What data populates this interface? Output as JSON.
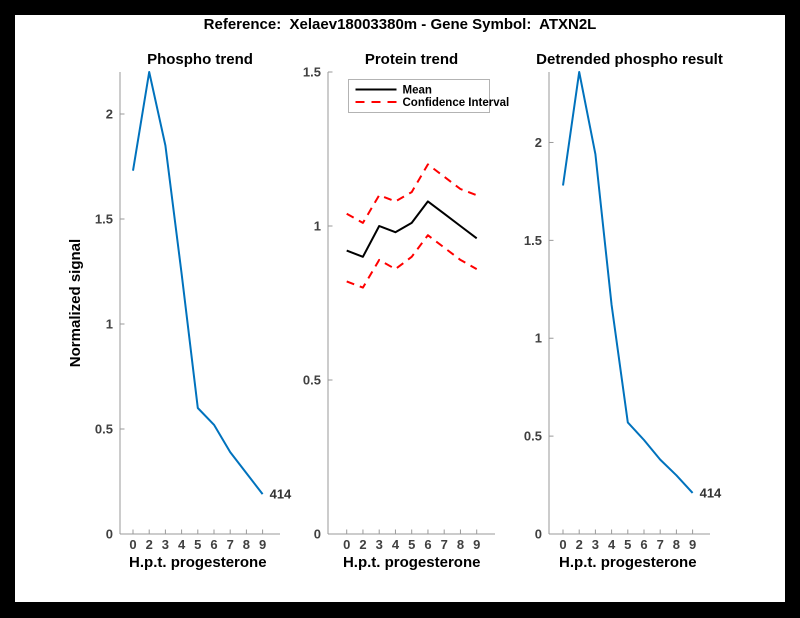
{
  "figure": {
    "title": "Reference:  Xelaev18003380m - Gene Symbol:  ATXN2L"
  },
  "colors": {
    "blue": "#0072BD",
    "red": "#FF0000",
    "black": "#000000",
    "axis_line": "#999999",
    "tick_text": "#404040",
    "label_text": "#000000",
    "legend_border": "#b3b3b3",
    "end_label_text": "#333333"
  },
  "chart_data": [
    {
      "type": "line",
      "title": "Phospho trend",
      "xlabel": "H.p.t. progesterone",
      "ylabel": "Normalized signal",
      "x_tick_labels": [
        "0",
        "2",
        "3",
        "4",
        "5",
        "6",
        "7",
        "8",
        "9"
      ],
      "yticks": [
        0,
        0.5,
        1,
        1.5,
        2
      ],
      "ylim": [
        0,
        2.2
      ],
      "grid": false,
      "series": [
        {
          "name": "phospho-signal",
          "color_key": "blue",
          "style": "solid",
          "values": [
            1.73,
            2.2,
            1.85,
            1.24,
            0.6,
            0.52,
            0.39,
            0.29,
            0.19
          ]
        }
      ],
      "end_label": "414"
    },
    {
      "type": "line",
      "title": "Protein trend",
      "xlabel": "H.p.t. progesterone",
      "ylabel": "",
      "x_tick_labels": [
        "0",
        "2",
        "3",
        "4",
        "5",
        "6",
        "7",
        "8",
        "9"
      ],
      "yticks": [
        0,
        0.5,
        1,
        1.5
      ],
      "ylim": [
        0,
        1.5
      ],
      "grid": false,
      "series": [
        {
          "name": "mean",
          "color_key": "black",
          "style": "solid",
          "values": [
            0.92,
            0.9,
            1.0,
            0.98,
            1.01,
            1.08,
            1.04,
            1.0,
            0.96
          ]
        },
        {
          "name": "confidence-upper",
          "color_key": "red",
          "style": "dashed",
          "values": [
            1.04,
            1.01,
            1.1,
            1.08,
            1.11,
            1.2,
            1.16,
            1.12,
            1.1
          ]
        },
        {
          "name": "confidence-lower",
          "color_key": "red",
          "style": "dashed",
          "values": [
            0.82,
            0.8,
            0.89,
            0.86,
            0.9,
            0.97,
            0.93,
            0.89,
            0.86
          ]
        }
      ],
      "legend": {
        "position": "northwest",
        "items": [
          {
            "label": "Mean",
            "color_key": "black",
            "style": "solid"
          },
          {
            "label": "Confidence Interval",
            "color_key": "red",
            "style": "dashed"
          }
        ]
      }
    },
    {
      "type": "line",
      "title": "Detrended phospho result",
      "xlabel": "H.p.t. progesterone",
      "ylabel": "",
      "x_tick_labels": [
        "0",
        "2",
        "3",
        "4",
        "5",
        "6",
        "7",
        "8",
        "9"
      ],
      "yticks": [
        0,
        0.5,
        1,
        1.5,
        2
      ],
      "ylim": [
        0,
        2.36
      ],
      "grid": false,
      "series": [
        {
          "name": "detrended-phospho",
          "color_key": "blue",
          "style": "solid",
          "values": [
            1.78,
            2.36,
            1.94,
            1.17,
            0.57,
            0.48,
            0.38,
            0.3,
            0.21
          ]
        }
      ],
      "end_label": "414"
    }
  ]
}
